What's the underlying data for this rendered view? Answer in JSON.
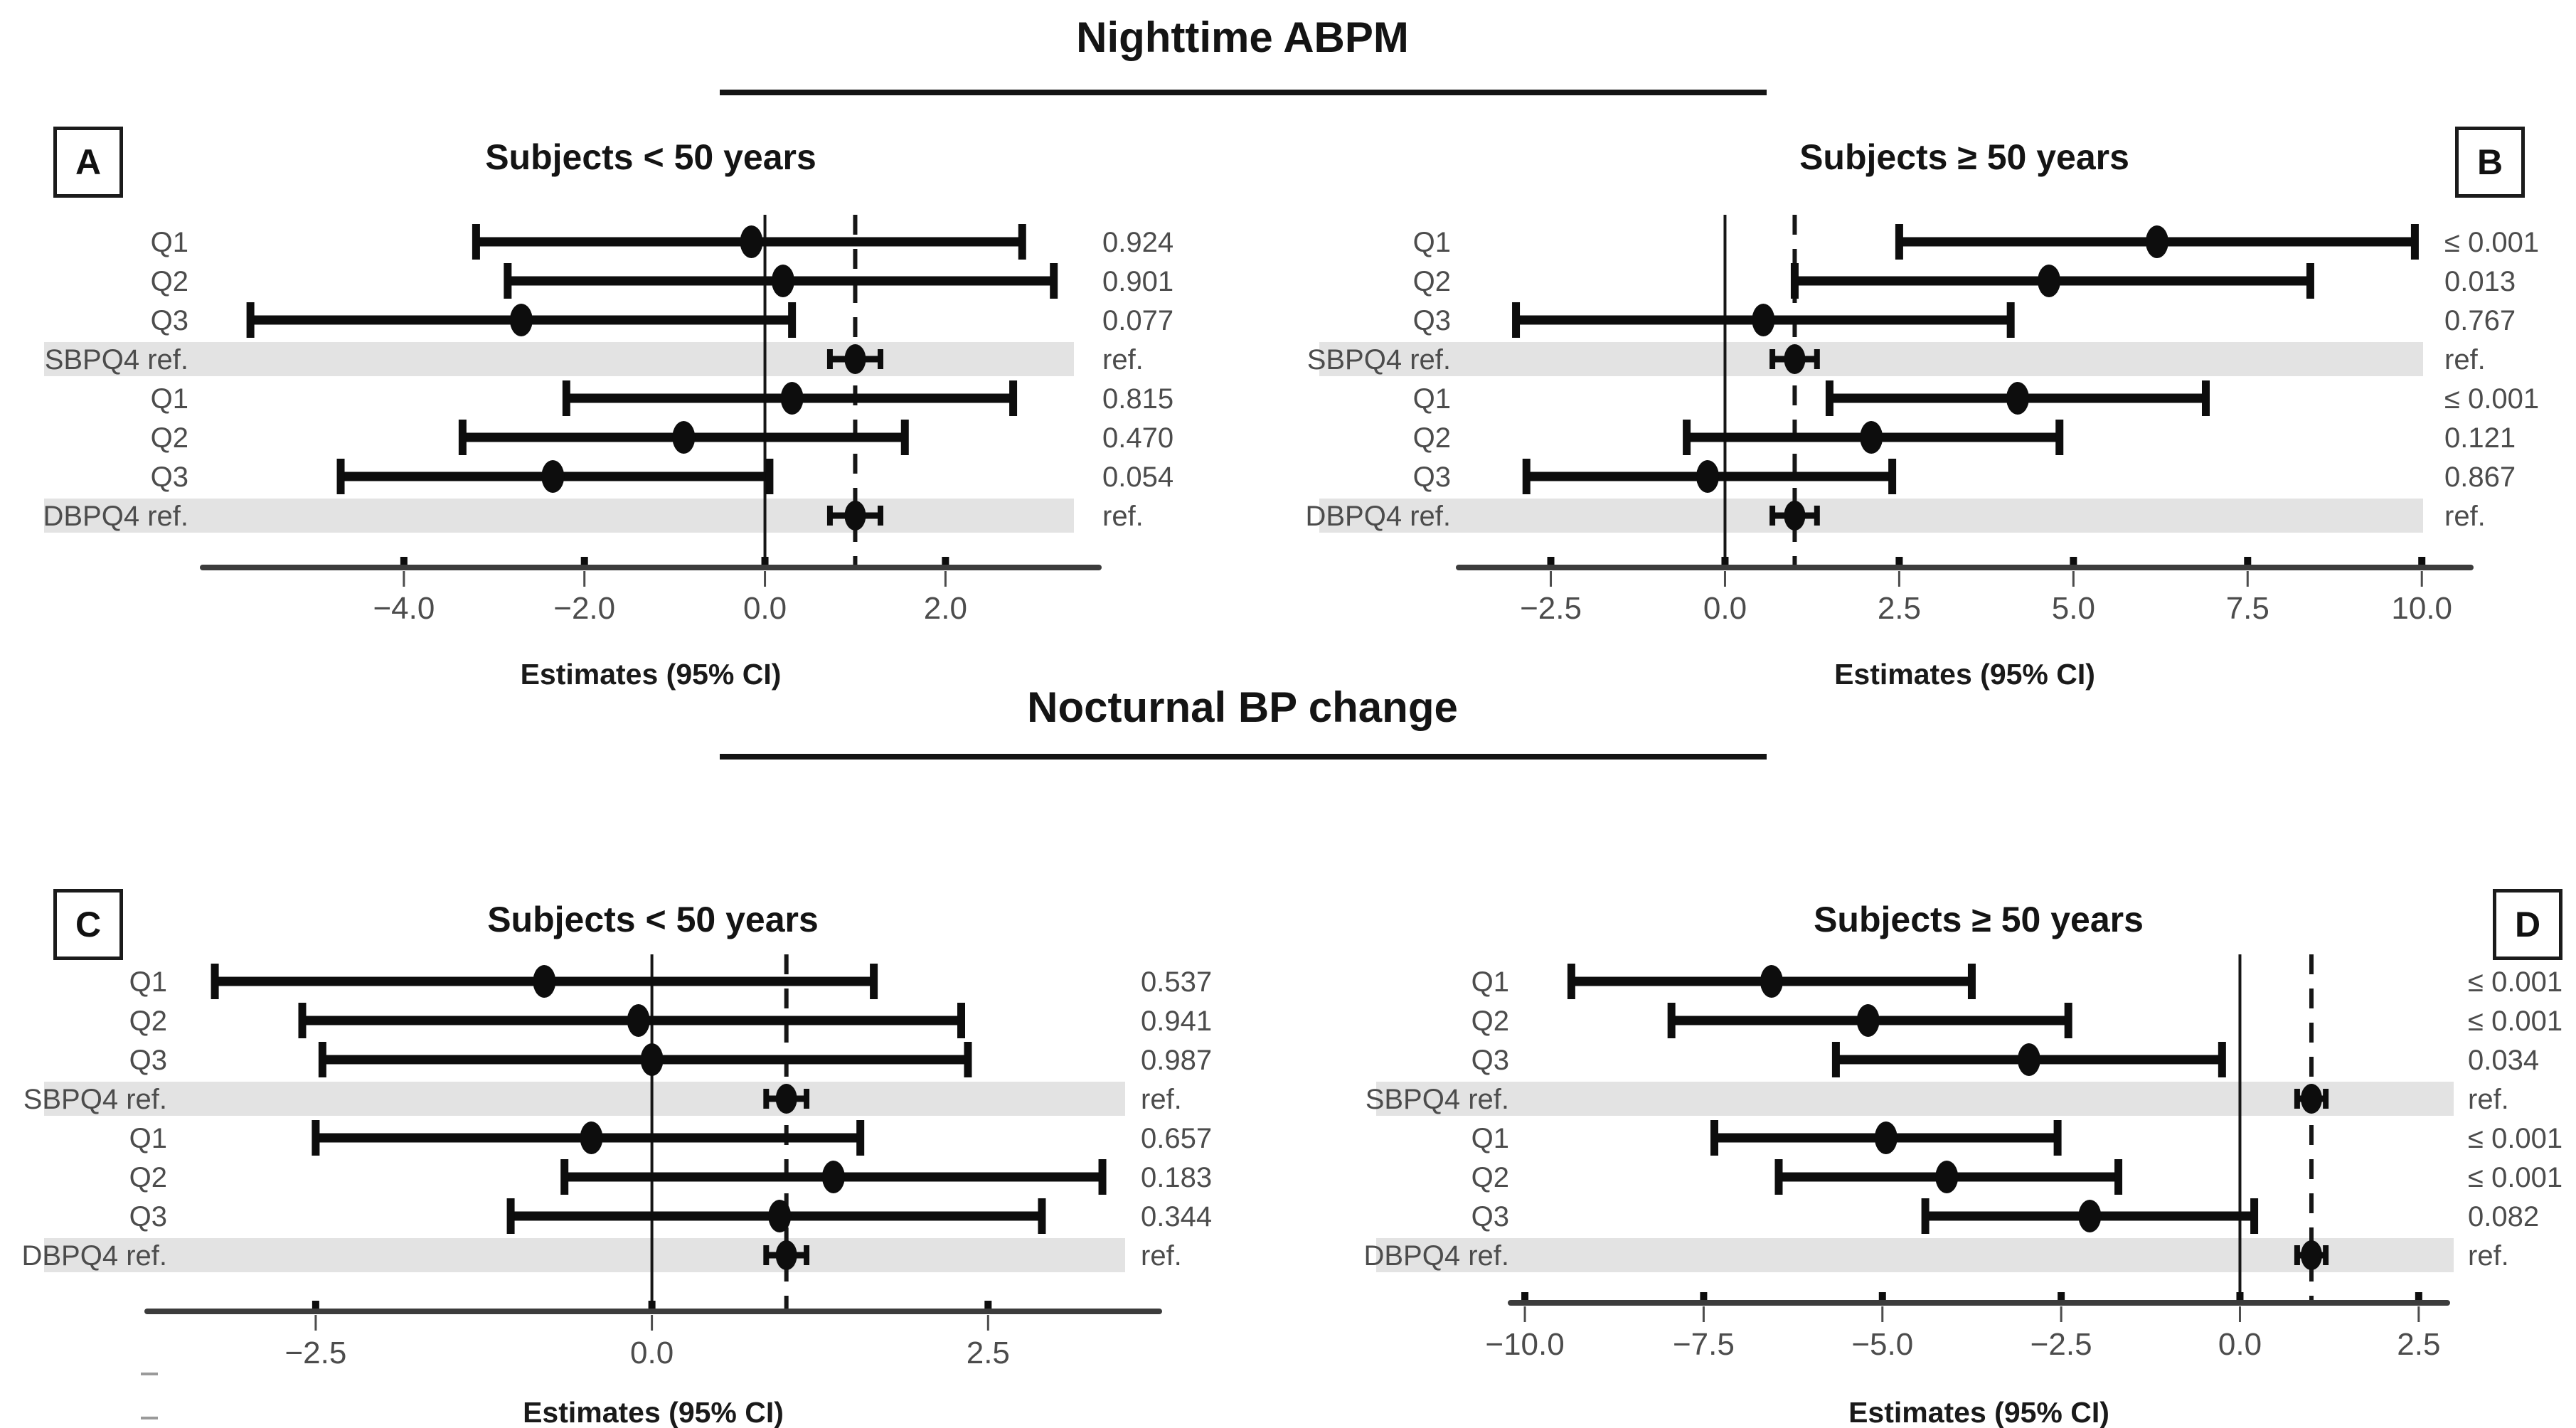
{
  "figure": {
    "sections": [
      {
        "title": "Nighttime ABPM"
      },
      {
        "title": "Nocturnal BP change"
      }
    ]
  },
  "style": {
    "band": "#e3e3e3",
    "text_gray": "#4c4c4c",
    "marker": "#0d0d0d",
    "axis_line": "#3c3c3c",
    "ref_line": "#161616",
    "xlabel_color": "#1a1a1a"
  },
  "chart_data": [
    {
      "type": "forest",
      "panel": "A",
      "section": "Nighttime ABPM",
      "title": "Subjects < 50 years",
      "xlabel": "Estimates (95% CI)",
      "xlim": [
        -6.15,
        3.62
      ],
      "solid_vline": 0.0,
      "dashed_vline": 1.0,
      "ticks": [
        {
          "v": -4.0,
          "t": "−4.0"
        },
        {
          "v": -2.0,
          "t": "−2.0"
        },
        {
          "v": 0.0,
          "t": "0.0"
        },
        {
          "v": 2.0,
          "t": "2.0"
        }
      ],
      "rows": [
        {
          "label": "Q1",
          "group": "SBP",
          "est": -0.15,
          "lo": -3.2,
          "hi": 2.85,
          "p": "0.924",
          "ref": false
        },
        {
          "label": "Q2",
          "group": "SBP",
          "est": 0.2,
          "lo": -2.85,
          "hi": 3.2,
          "p": "0.901",
          "ref": false
        },
        {
          "label": "Q3",
          "group": "SBP",
          "est": -2.7,
          "lo": -5.7,
          "hi": 0.3,
          "p": "0.077",
          "ref": false
        },
        {
          "label": "SBPQ4 ref.",
          "group": "SBP",
          "est": 1.0,
          "lo": 0.72,
          "hi": 1.28,
          "p": "ref.",
          "ref": true
        },
        {
          "label": "Q1",
          "group": "DBP",
          "est": 0.3,
          "lo": -2.2,
          "hi": 2.75,
          "p": "0.815",
          "ref": false
        },
        {
          "label": "Q2",
          "group": "DBP",
          "est": -0.9,
          "lo": -3.35,
          "hi": 1.55,
          "p": "0.470",
          "ref": false
        },
        {
          "label": "Q3",
          "group": "DBP",
          "est": -2.35,
          "lo": -4.7,
          "hi": 0.05,
          "p": "0.054",
          "ref": false
        },
        {
          "label": "DBPQ4 ref.",
          "group": "DBP",
          "est": 1.0,
          "lo": 0.72,
          "hi": 1.28,
          "p": "ref.",
          "ref": true
        }
      ]
    },
    {
      "type": "forest",
      "panel": "B",
      "section": "Nighttime ABPM",
      "title": "Subjects ≥ 50 years",
      "xlabel": "Estimates (95% CI)",
      "xlim": [
        -3.72,
        10.6
      ],
      "solid_vline": 0.0,
      "dashed_vline": 1.0,
      "ticks": [
        {
          "v": -2.5,
          "t": "−2.5"
        },
        {
          "v": 0.0,
          "t": "0.0"
        },
        {
          "v": 2.5,
          "t": "2.5"
        },
        {
          "v": 5.0,
          "t": "5.0"
        },
        {
          "v": 7.5,
          "t": "7.5"
        },
        {
          "v": 10.0,
          "t": "10.0"
        }
      ],
      "rows": [
        {
          "label": "Q1",
          "group": "SBP",
          "est": 6.2,
          "lo": 2.5,
          "hi": 9.9,
          "p": "≤ 0.001",
          "ref": false
        },
        {
          "label": "Q2",
          "group": "SBP",
          "est": 4.65,
          "lo": 1.0,
          "hi": 8.4,
          "p": "0.013",
          "ref": false
        },
        {
          "label": "Q3",
          "group": "SBP",
          "est": 0.55,
          "lo": -3.0,
          "hi": 4.1,
          "p": "0.767",
          "ref": false
        },
        {
          "label": "SBPQ4 ref.",
          "group": "SBP",
          "est": 1.0,
          "lo": 0.68,
          "hi": 1.32,
          "p": "ref.",
          "ref": true
        },
        {
          "label": "Q1",
          "group": "DBP",
          "est": 4.2,
          "lo": 1.5,
          "hi": 6.9,
          "p": "≤ 0.001",
          "ref": false
        },
        {
          "label": "Q2",
          "group": "DBP",
          "est": 2.1,
          "lo": -0.55,
          "hi": 4.8,
          "p": "0.121",
          "ref": false
        },
        {
          "label": "Q3",
          "group": "DBP",
          "est": -0.25,
          "lo": -2.85,
          "hi": 2.4,
          "p": "0.867",
          "ref": false
        },
        {
          "label": "DBPQ4 ref.",
          "group": "DBP",
          "est": 1.0,
          "lo": 0.68,
          "hi": 1.32,
          "p": "ref.",
          "ref": true
        }
      ]
    },
    {
      "type": "forest",
      "panel": "C",
      "section": "Nocturnal BP change",
      "title": "Subjects < 50 years",
      "xlabel": "Estimates (95% CI)",
      "xlim": [
        -3.7,
        3.72
      ],
      "solid_vline": 0.0,
      "dashed_vline": 1.0,
      "ticks": [
        {
          "v": -2.5,
          "t": "−2.5"
        },
        {
          "v": 0.0,
          "t": "0.0"
        },
        {
          "v": 2.5,
          "t": "2.5"
        }
      ],
      "rows": [
        {
          "label": "Q1",
          "group": "SBP",
          "est": -0.8,
          "lo": -3.25,
          "hi": 1.65,
          "p": "0.537",
          "ref": false
        },
        {
          "label": "Q2",
          "group": "SBP",
          "est": -0.1,
          "lo": -2.6,
          "hi": 2.3,
          "p": "0.941",
          "ref": false
        },
        {
          "label": "Q3",
          "group": "SBP",
          "est": 0.0,
          "lo": -2.45,
          "hi": 2.35,
          "p": "0.987",
          "ref": false
        },
        {
          "label": "SBPQ4 ref.",
          "group": "SBP",
          "est": 1.0,
          "lo": 0.85,
          "hi": 1.15,
          "p": "ref.",
          "ref": true
        },
        {
          "label": "Q1",
          "group": "DBP",
          "est": -0.45,
          "lo": -2.5,
          "hi": 1.55,
          "p": "0.657",
          "ref": false
        },
        {
          "label": "Q2",
          "group": "DBP",
          "est": 1.35,
          "lo": -0.65,
          "hi": 3.35,
          "p": "0.183",
          "ref": false
        },
        {
          "label": "Q3",
          "group": "DBP",
          "est": 0.95,
          "lo": -1.05,
          "hi": 2.9,
          "p": "0.344",
          "ref": false
        },
        {
          "label": "DBPQ4 ref.",
          "group": "DBP",
          "est": 1.0,
          "lo": 0.85,
          "hi": 1.15,
          "p": "ref.",
          "ref": true
        }
      ]
    },
    {
      "type": "forest",
      "panel": "D",
      "section": "Nocturnal BP change",
      "title": "Subjects ≥ 50 years",
      "xlabel": "Estimates (95% CI)",
      "xlim": [
        -10.1,
        2.8
      ],
      "solid_vline": 0.0,
      "dashed_vline": 1.0,
      "ticks": [
        {
          "v": -10.0,
          "t": "−10.0"
        },
        {
          "v": -7.5,
          "t": "−7.5"
        },
        {
          "v": -5.0,
          "t": "−5.0"
        },
        {
          "v": -2.5,
          "t": "−2.5"
        },
        {
          "v": 0.0,
          "t": "0.0"
        },
        {
          "v": 2.5,
          "t": "2.5"
        }
      ],
      "rows": [
        {
          "label": "Q1",
          "group": "SBP",
          "est": -6.55,
          "lo": -9.35,
          "hi": -3.75,
          "p": "≤ 0.001",
          "ref": false
        },
        {
          "label": "Q2",
          "group": "SBP",
          "est": -5.2,
          "lo": -7.95,
          "hi": -2.4,
          "p": "≤ 0.001",
          "ref": false
        },
        {
          "label": "Q3",
          "group": "SBP",
          "est": -2.95,
          "lo": -5.65,
          "hi": -0.25,
          "p": "0.034",
          "ref": false
        },
        {
          "label": "SBPQ4 ref.",
          "group": "SBP",
          "est": 1.0,
          "lo": 0.8,
          "hi": 1.2,
          "p": "ref.",
          "ref": true
        },
        {
          "label": "Q1",
          "group": "DBP",
          "est": -4.95,
          "lo": -7.35,
          "hi": -2.55,
          "p": "≤ 0.001",
          "ref": false
        },
        {
          "label": "Q2",
          "group": "DBP",
          "est": -4.1,
          "lo": -6.45,
          "hi": -1.7,
          "p": "≤ 0.001",
          "ref": false
        },
        {
          "label": "Q3",
          "group": "DBP",
          "est": -2.1,
          "lo": -4.4,
          "hi": 0.2,
          "p": "0.082",
          "ref": false
        },
        {
          "label": "DBPQ4 ref.",
          "group": "DBP",
          "est": 1.0,
          "lo": 0.8,
          "hi": 1.2,
          "p": "ref.",
          "ref": true
        }
      ]
    }
  ]
}
